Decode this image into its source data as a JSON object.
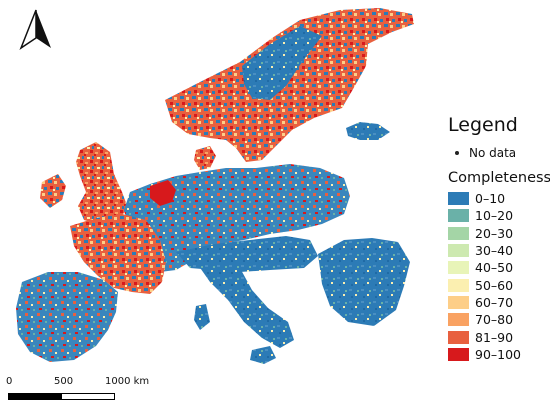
{
  "map": {
    "classes": [
      {
        "label": "0–10",
        "color": "#2c7bb6"
      },
      {
        "label": "10–20",
        "color": "#6ab1a8"
      },
      {
        "label": "20–30",
        "color": "#a4d5a6"
      },
      {
        "label": "30–40",
        "color": "#cde9b0"
      },
      {
        "label": "40–50",
        "color": "#e8f4b8"
      },
      {
        "label": "50–60",
        "color": "#fbefb0"
      },
      {
        "label": "60–70",
        "color": "#fdce88"
      },
      {
        "label": "70–80",
        "color": "#f9a262"
      },
      {
        "label": "81–90",
        "color": "#e8603f"
      },
      {
        "label": "90–100",
        "color": "#d7191c"
      }
    ],
    "north_arrow_icon": "north-arrow-icon"
  },
  "legend": {
    "title": "Legend",
    "nodata_label": "No data",
    "classification_title": "Completeness"
  },
  "scalebar": {
    "labels": [
      "0",
      "500",
      "1000 km"
    ]
  }
}
